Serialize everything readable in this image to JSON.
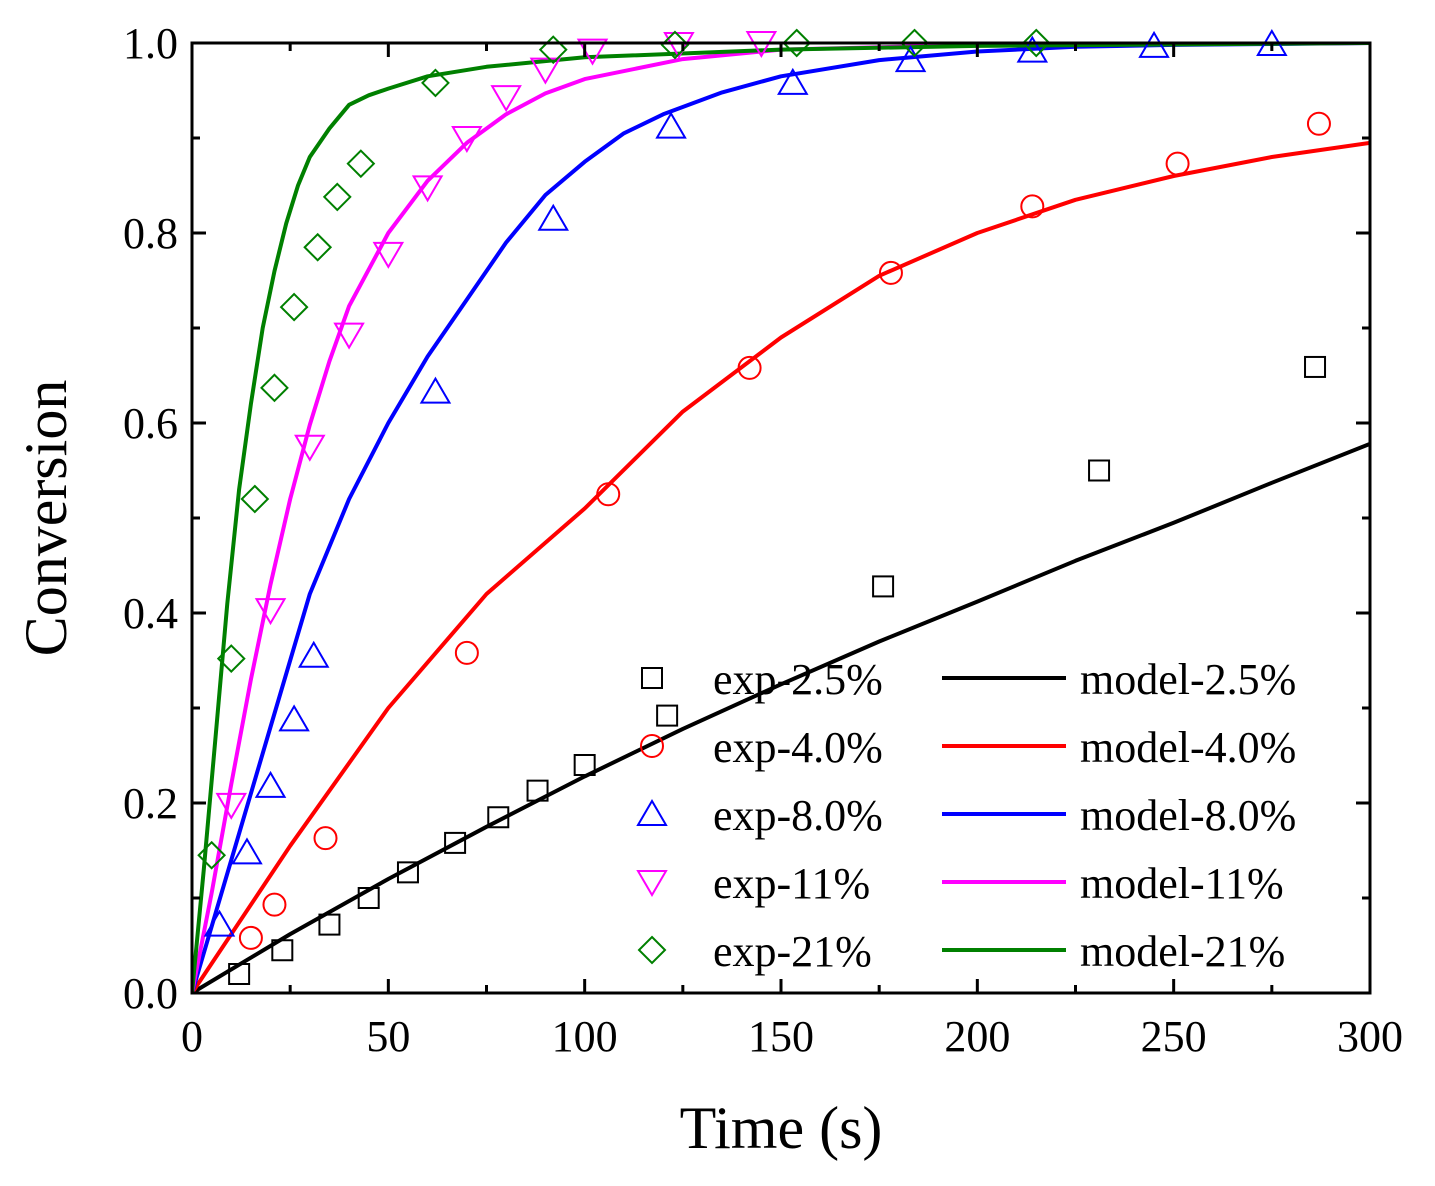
{
  "chart_data": {
    "type": "scatter",
    "xlabel": "Time (s)",
    "ylabel": "Conversion",
    "xlim": [
      0,
      300
    ],
    "ylim": [
      0,
      1.0
    ],
    "x_ticks": [
      0,
      50,
      100,
      150,
      200,
      250,
      300
    ],
    "y_ticks": [
      0.0,
      0.2,
      0.4,
      0.6,
      0.8,
      1.0
    ],
    "x_tick_labels": [
      "0",
      "50",
      "100",
      "150",
      "200",
      "250",
      "300"
    ],
    "y_tick_labels": [
      "0.0",
      "0.2",
      "0.4",
      "0.6",
      "0.8",
      "1.0"
    ],
    "legend_position": "bottom-right",
    "series": [
      {
        "name": "exp-2.5%",
        "kind": "marker",
        "marker": "square",
        "color": "#000000",
        "x": [
          12,
          23,
          35,
          45,
          55,
          67,
          78,
          88,
          100,
          121,
          176,
          231,
          286
        ],
        "y": [
          0.02,
          0.045,
          0.072,
          0.1,
          0.127,
          0.158,
          0.185,
          0.213,
          0.24,
          0.292,
          0.428,
          0.55,
          0.659
        ]
      },
      {
        "name": "exp-4.0%",
        "kind": "marker",
        "marker": "circle",
        "color": "#ff0000",
        "x": [
          15,
          21,
          34,
          70,
          106,
          142,
          178,
          214,
          251,
          287
        ],
        "y": [
          0.058,
          0.093,
          0.163,
          0.358,
          0.525,
          0.658,
          0.758,
          0.828,
          0.873,
          0.915
        ]
      },
      {
        "name": "exp-8.0%",
        "kind": "marker",
        "marker": "triangle-up",
        "color": "#0000ff",
        "x": [
          7,
          14,
          20,
          26,
          31,
          62,
          92,
          122,
          153,
          183,
          214,
          245,
          275
        ],
        "y": [
          0.072,
          0.148,
          0.218,
          0.288,
          0.355,
          0.633,
          0.815,
          0.912,
          0.958,
          0.982,
          0.992,
          0.997,
          0.999
        ]
      },
      {
        "name": "exp-11%",
        "kind": "marker",
        "marker": "triangle-down",
        "color": "#ff00ff",
        "x": [
          10,
          20,
          30,
          40,
          50,
          60,
          70,
          80,
          90,
          102,
          124,
          145
        ],
        "y": [
          0.198,
          0.403,
          0.575,
          0.693,
          0.778,
          0.848,
          0.9,
          0.943,
          0.972,
          0.992,
          0.999,
          1.0
        ]
      },
      {
        "name": "exp-21%",
        "kind": "marker",
        "marker": "diamond",
        "color": "#008000",
        "x": [
          5,
          10,
          16,
          21,
          26,
          32,
          37,
          43,
          62,
          92,
          123,
          154,
          184,
          215
        ],
        "y": [
          0.145,
          0.352,
          0.52,
          0.637,
          0.722,
          0.785,
          0.838,
          0.873,
          0.958,
          0.993,
          0.998,
          1.0,
          1.0,
          1.0
        ]
      },
      {
        "name": "model-2.5%",
        "kind": "line",
        "color": "#000000",
        "x": [
          0,
          25,
          50,
          75,
          100,
          125,
          150,
          175,
          200,
          225,
          250,
          275,
          300
        ],
        "y": [
          0,
          0.062,
          0.12,
          0.175,
          0.228,
          0.278,
          0.325,
          0.37,
          0.412,
          0.455,
          0.495,
          0.537,
          0.578
        ]
      },
      {
        "name": "model-4.0%",
        "kind": "line",
        "color": "#ff0000",
        "x": [
          0,
          25,
          50,
          75,
          100,
          125,
          150,
          175,
          200,
          225,
          250,
          275,
          300
        ],
        "y": [
          0,
          0.155,
          0.3,
          0.42,
          0.51,
          0.612,
          0.69,
          0.755,
          0.8,
          0.835,
          0.86,
          0.88,
          0.895
        ]
      },
      {
        "name": "model-8.0%",
        "kind": "line",
        "color": "#0000ff",
        "x": [
          0,
          10,
          20,
          30,
          40,
          50,
          60,
          70,
          80,
          90,
          100,
          110,
          120,
          135,
          150,
          175,
          200,
          225,
          250,
          275,
          300
        ],
        "y": [
          0,
          0.14,
          0.28,
          0.42,
          0.52,
          0.6,
          0.67,
          0.73,
          0.79,
          0.84,
          0.875,
          0.905,
          0.925,
          0.948,
          0.965,
          0.982,
          0.991,
          0.996,
          0.998,
          0.999,
          1.0
        ]
      },
      {
        "name": "model-11%",
        "kind": "line",
        "color": "#ff00ff",
        "x": [
          0,
          5,
          10,
          15,
          20,
          25,
          30,
          35,
          40,
          50,
          60,
          70,
          80,
          90,
          100,
          125,
          150,
          200,
          250,
          300
        ],
        "y": [
          0,
          0.105,
          0.22,
          0.33,
          0.43,
          0.52,
          0.598,
          0.665,
          0.723,
          0.8,
          0.855,
          0.895,
          0.925,
          0.947,
          0.962,
          0.983,
          0.993,
          0.998,
          0.999,
          1.0
        ]
      },
      {
        "name": "model-21%",
        "kind": "line",
        "color": "#008000",
        "x": [
          0,
          3,
          6,
          9,
          12,
          15,
          18,
          21,
          24,
          27,
          30,
          35,
          40,
          45,
          50,
          60,
          75,
          100,
          150,
          200,
          300
        ],
        "y": [
          0,
          0.13,
          0.27,
          0.41,
          0.53,
          0.62,
          0.7,
          0.76,
          0.81,
          0.85,
          0.88,
          0.91,
          0.935,
          0.945,
          0.952,
          0.965,
          0.975,
          0.985,
          0.993,
          0.997,
          1.0
        ]
      }
    ]
  }
}
